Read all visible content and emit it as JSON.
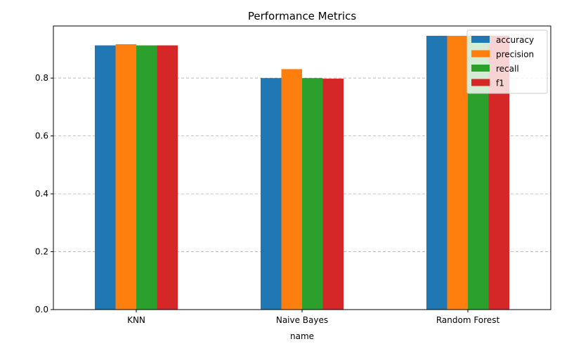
{
  "chart_data": {
    "type": "bar",
    "title": "Performance Metrics",
    "xlabel": "name",
    "ylabel": "",
    "categories": [
      "KNN",
      "Naive Bayes",
      "Random Forest"
    ],
    "series": [
      {
        "name": "accuracy",
        "color": "#1f77b4",
        "values": [
          0.913,
          0.8,
          0.946
        ]
      },
      {
        "name": "precision",
        "color": "#ff7f0e",
        "values": [
          0.917,
          0.831,
          0.946
        ]
      },
      {
        "name": "recall",
        "color": "#2ca02c",
        "values": [
          0.913,
          0.8,
          0.946
        ]
      },
      {
        "name": "f1",
        "color": "#d62728",
        "values": [
          0.913,
          0.798,
          0.946
        ]
      }
    ],
    "ylim": [
      0,
      0.98
    ],
    "yticks": [
      0.0,
      0.2,
      0.4,
      0.6,
      0.8
    ],
    "ytick_labels": [
      "0.0",
      "0.2",
      "0.4",
      "0.6",
      "0.8"
    ],
    "grid": "y-dashed",
    "legend_position": "top-right"
  }
}
